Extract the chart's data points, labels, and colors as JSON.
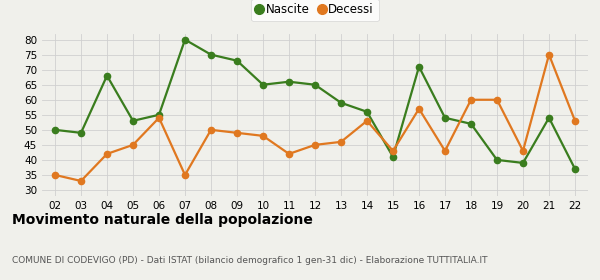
{
  "years": [
    "02",
    "03",
    "04",
    "05",
    "06",
    "07",
    "08",
    "09",
    "10",
    "11",
    "12",
    "13",
    "14",
    "15",
    "16",
    "17",
    "18",
    "19",
    "20",
    "21",
    "22"
  ],
  "nascite": [
    50,
    49,
    68,
    53,
    55,
    80,
    75,
    73,
    65,
    66,
    65,
    59,
    56,
    41,
    71,
    54,
    52,
    40,
    39,
    54,
    37
  ],
  "decessi": [
    35,
    33,
    42,
    45,
    54,
    35,
    50,
    49,
    48,
    42,
    45,
    46,
    53,
    43,
    57,
    43,
    60,
    60,
    43,
    75,
    53
  ],
  "nascite_color": "#3a7d1e",
  "decessi_color": "#e07820",
  "bg_color": "#f0f0eb",
  "grid_color": "#d0d0d0",
  "ylim": [
    28,
    82
  ],
  "yticks": [
    30,
    35,
    40,
    45,
    50,
    55,
    60,
    65,
    70,
    75,
    80
  ],
  "title": "Movimento naturale della popolazione",
  "subtitle": "COMUNE DI CODEVIGO (PD) - Dati ISTAT (bilancio demografico 1 gen-31 dic) - Elaborazione TUTTITALIA.IT",
  "legend_nascite": "Nascite",
  "legend_decessi": "Decessi",
  "marker_size": 4.5,
  "line_width": 1.6,
  "tick_fontsize": 7.5,
  "title_fontsize": 10,
  "subtitle_fontsize": 6.5
}
